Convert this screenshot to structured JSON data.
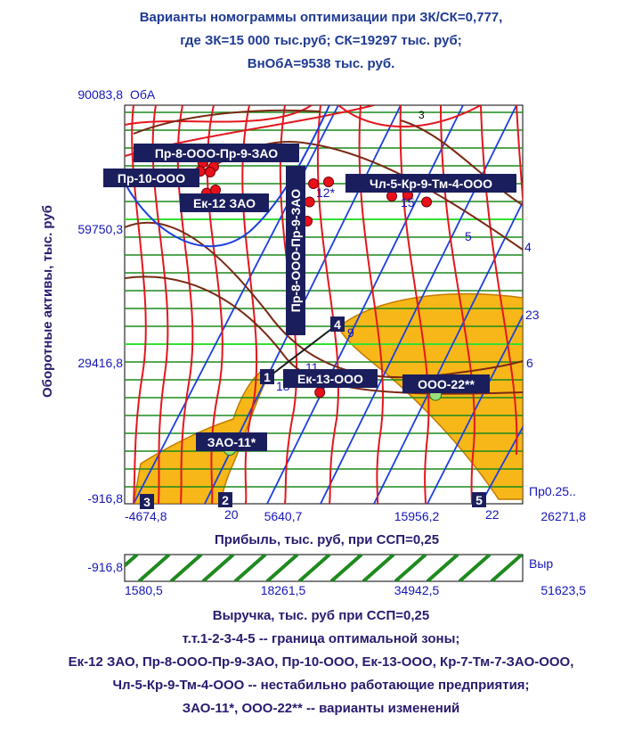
{
  "title": [
    "Варианты номограммы оптимизации при ЗК/СК=0,777,",
    "где ЗК=15 000 тыс.руб; СК=19297 тыс. руб;",
    "ВнОбА=9538 тыс. руб."
  ],
  "footer": [
    "Выручка, тыс. руб при ССП=0,25",
    "т.т.1-2-3-4-5 --   граница оптимальной зоны;",
    "Ек-12 ЗАО, Пр-8-ООО-Пр-9-ЗАО, Пр-10-ООО,  Ек-13-ООО, Кр-7-Тм-7-ЗАО-ООО,",
    "Чл-5-Кр-9-Тм-4-ООО -- нестабильно работающие предприятия;",
    "ЗАО-11*, ООО-22** -- варианты изменений"
  ],
  "chart_data": {
    "type": "nomogram",
    "xlabel": "Прибыль, тыс. руб,  при ССП=0,25",
    "ylabel": "Оборотные активы, тыс. руб",
    "corner_label": "ОбА",
    "right_label": "Пр0.25..",
    "xlim": [
      -4674.8,
      26271.8
    ],
    "ylim": [
      -916.8,
      90083.8
    ],
    "x_ticks": [
      "-4674,8",
      "5640,7",
      "15956,2",
      "26271,8"
    ],
    "y_ticks": [
      "-916,8",
      "29416,8",
      "59750,3",
      "90083,8"
    ],
    "revenue_axis": {
      "label": "Выр",
      "x_ticks": [
        "1580,5",
        "18261,5",
        "34942,5",
        "51623,5"
      ],
      "y_tick": "-916,8"
    },
    "boundary_points": [
      {
        "id": "1",
        "x": 6700,
        "y": 21000
      },
      {
        "id": "2",
        "x": 3700,
        "y": -900
      },
      {
        "id": "3",
        "x": -2300,
        "y": -900
      },
      {
        "id": "4",
        "x": 12300,
        "y": 38200
      },
      {
        "id": "5",
        "x": 21900,
        "y": -900
      }
    ],
    "curve_numbers": [
      "3",
      "4",
      "5",
      "6",
      "9",
      "11",
      "12*",
      "15",
      "18",
      "20",
      "22",
      "23"
    ],
    "unstable_enterprises": [
      {
        "name": "Пр-8-ООО-Пр-9-ЗАО",
        "x": 1400,
        "y": 77000
      },
      {
        "name": "Пр-10-ООО",
        "x": 1200,
        "y": 75000
      },
      {
        "name": "Ек-12 ЗАО",
        "x": 1700,
        "y": 70000
      },
      {
        "name": "Пр-8-ООО-Пр-9-ЗАО",
        "x": 9700,
        "y": 68000
      },
      {
        "name": "Чл-5-Кр-9-Тм-4-ООО",
        "x": 18800,
        "y": 68000
      },
      {
        "name": "Ек-13-ООО",
        "x": 10500,
        "y": 24500
      }
    ],
    "change_variants": [
      {
        "name": "ЗАО-11*",
        "x": 3500,
        "y": 11500
      },
      {
        "name": "ООО-22**",
        "x": 19500,
        "y": 24000
      }
    ]
  }
}
